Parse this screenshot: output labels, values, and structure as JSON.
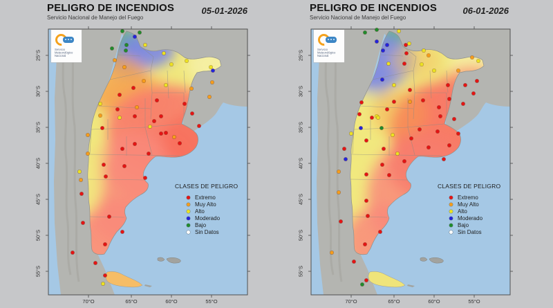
{
  "page_background": "#c6c7c9",
  "legend_title": "CLASES DE PELIGRO",
  "danger_classes": [
    {
      "key": "E",
      "label": "Extremo",
      "color": "#e41414"
    },
    {
      "key": "M",
      "label": "Muy Alto",
      "color": "#f59d1c"
    },
    {
      "key": "A",
      "label": "Alto",
      "color": "#ece222"
    },
    {
      "key": "MOD",
      "label": "Moderado",
      "color": "#2323dc"
    },
    {
      "key": "B",
      "label": "Bajo",
      "color": "#1f8b2c"
    },
    {
      "key": "S",
      "label": "Sin Datos",
      "color": "#ffffff"
    }
  ],
  "axes": {
    "lon_labels": [
      "70°O",
      "65°O",
      "60°O",
      "55°O"
    ],
    "lat_labels": [
      "25°S",
      "30°S",
      "35°S",
      "40°S",
      "45°S",
      "50°S",
      "55°S"
    ]
  },
  "logo_lines": [
    "Servicio",
    "Meteorológico",
    "Nacional"
  ],
  "map_colors": {
    "ocean": "#a5c8e5",
    "land": "#b4b5b1",
    "field_yellow_base": "#f0e77c",
    "field_red": "#f8705f",
    "field_orange": "#f6a24e",
    "field_blue": "#7c87e6",
    "field_teal": "#66ad8c"
  },
  "panels": [
    {
      "title": "PELIGRO DE INCENDIOS",
      "subtitle": "Servicio Nacional de Manejo del Fuego",
      "date": "05-01-2026",
      "tdf_color": "#f6bd66",
      "field_blobs": [
        [
          100,
          22,
          42,
          30,
          "#66ad8c",
          0.95
        ],
        [
          143,
          30,
          40,
          26,
          "#7c87e6",
          0.9
        ],
        [
          116,
          50,
          28,
          20,
          "#7c87e6",
          0.65
        ],
        [
          245,
          52,
          45,
          32,
          "#f6f0a8",
          0.85
        ],
        [
          100,
          80,
          48,
          42,
          "#f6a24e",
          0.75
        ],
        [
          130,
          102,
          52,
          36,
          "#f6a24e",
          0.55
        ],
        [
          172,
          148,
          88,
          66,
          "#f87c6b",
          0.9
        ],
        [
          150,
          195,
          65,
          55,
          "#f87c6b",
          0.8
        ],
        [
          122,
          232,
          72,
          82,
          "#f98b7b",
          0.85
        ],
        [
          100,
          302,
          62,
          58,
          "#f98b7b",
          0.9
        ],
        [
          212,
          162,
          48,
          42,
          "#f76a58",
          0.65
        ],
        [
          50,
          222,
          28,
          48,
          "#f1e87e",
          0.95
        ],
        [
          62,
          175,
          22,
          30,
          "#f1e87e",
          0.7
        ]
      ],
      "stations": [
        [
          "B",
          107,
          3
        ],
        [
          "B",
          132,
          5
        ],
        [
          "B",
          113,
          23
        ],
        [
          "B",
          112,
          31
        ],
        [
          "B",
          92,
          28
        ],
        [
          "MOD",
          125,
          11
        ],
        [
          "MOD",
          238,
          60
        ],
        [
          "A",
          140,
          23
        ],
        [
          "A",
          167,
          35
        ],
        [
          "A",
          200,
          46
        ],
        [
          "A",
          235,
          55
        ],
        [
          "A",
          178,
          51
        ],
        [
          "A",
          170,
          81
        ],
        [
          "A",
          103,
          128
        ],
        [
          "A",
          147,
          141
        ],
        [
          "A",
          75,
          108
        ],
        [
          "A",
          45,
          206
        ],
        [
          "A",
          79,
          368
        ],
        [
          "M",
          110,
          55
        ],
        [
          "M",
          138,
          75
        ],
        [
          "M",
          237,
          77
        ],
        [
          "M",
          207,
          86
        ],
        [
          "M",
          233,
          98
        ],
        [
          "M",
          128,
          113
        ],
        [
          "M",
          75,
          125
        ],
        [
          "M",
          57,
          153
        ],
        [
          "M",
          57,
          180
        ],
        [
          "M",
          47,
          218
        ],
        [
          "M",
          182,
          156
        ],
        [
          "M",
          96,
          45
        ],
        [
          "E",
          123,
          85
        ],
        [
          "E",
          103,
          95
        ],
        [
          "E",
          157,
          103
        ],
        [
          "E",
          197,
          108
        ],
        [
          "E",
          100,
          116
        ],
        [
          "E",
          125,
          126
        ],
        [
          "E",
          163,
          126
        ],
        [
          "E",
          78,
          143
        ],
        [
          "E",
          153,
          133
        ],
        [
          "E",
          163,
          151
        ],
        [
          "E",
          125,
          166
        ],
        [
          "E",
          107,
          173
        ],
        [
          "E",
          145,
          180
        ],
        [
          "E",
          80,
          196
        ],
        [
          "E",
          110,
          198
        ],
        [
          "E",
          83,
          213
        ],
        [
          "E",
          140,
          215
        ],
        [
          "E",
          48,
          238
        ],
        [
          "E",
          50,
          280
        ],
        [
          "E",
          88,
          271
        ],
        [
          "E",
          107,
          293
        ],
        [
          "E",
          82,
          311
        ],
        [
          "E",
          35,
          323
        ],
        [
          "E",
          68,
          338
        ],
        [
          "E",
          82,
          356
        ],
        [
          "E",
          208,
          122
        ],
        [
          "E",
          190,
          165
        ],
        [
          "E",
          170,
          150
        ],
        [
          "E",
          218,
          140
        ]
      ]
    },
    {
      "title": "PELIGRO DE INCENDIOS",
      "subtitle": "Servicio Nacional de Manejo del Fuego",
      "date": "06-01-2026",
      "tdf_color": "#efe47a",
      "field_blobs": [
        [
          122,
          6,
          26,
          18,
          "#66ad8c",
          0.95
        ],
        [
          95,
          46,
          55,
          38,
          "#7c87e6",
          0.9
        ],
        [
          76,
          82,
          36,
          28,
          "#7c87e6",
          0.6
        ],
        [
          152,
          46,
          36,
          26,
          "#f4c468",
          0.55
        ],
        [
          242,
          50,
          42,
          30,
          "#f6f0a8",
          0.8
        ],
        [
          68,
          168,
          46,
          78,
          "#f1e87e",
          0.95
        ],
        [
          58,
          248,
          40,
          62,
          "#f1e87e",
          0.92
        ],
        [
          90,
          120,
          30,
          30,
          "#f1e87e",
          0.6
        ],
        [
          196,
          148,
          82,
          72,
          "#f8705f",
          0.9
        ],
        [
          232,
          100,
          52,
          46,
          "#f87c6b",
          0.7
        ],
        [
          152,
          242,
          72,
          82,
          "#f98b7b",
          0.85
        ],
        [
          104,
          306,
          56,
          52,
          "#f98b7b",
          0.85
        ],
        [
          170,
          195,
          60,
          50,
          "#f87c6b",
          0.8
        ],
        [
          128,
          122,
          40,
          34,
          "#f6a24e",
          0.45
        ]
      ],
      "stations": [
        [
          "B",
          95,
          1
        ],
        [
          "B",
          78,
          5
        ],
        [
          "B",
          102,
          143
        ],
        [
          "B",
          74,
          369
        ],
        [
          "MOD",
          110,
          23
        ],
        [
          "MOD",
          104,
          31
        ],
        [
          "MOD",
          95,
          18
        ],
        [
          "MOD",
          103,
          73
        ],
        [
          "MOD",
          72,
          143
        ],
        [
          "MOD",
          50,
          188
        ],
        [
          "A",
          127,
          3
        ],
        [
          "A",
          142,
          21
        ],
        [
          "A",
          163,
          31
        ],
        [
          "A",
          160,
          51
        ],
        [
          "A",
          178,
          60
        ],
        [
          "A",
          242,
          46
        ],
        [
          "A",
          120,
          81
        ],
        [
          "A",
          95,
          126
        ],
        [
          "A",
          97,
          128
        ],
        [
          "A",
          58,
          151
        ],
        [
          "A",
          118,
          153
        ],
        [
          "A",
          125,
          180
        ],
        [
          "A",
          112,
          50
        ],
        [
          "M",
          213,
          60
        ],
        [
          "M",
          233,
          41
        ],
        [
          "M",
          170,
          38
        ],
        [
          "M",
          143,
          105
        ],
        [
          "M",
          40,
          206
        ],
        [
          "M",
          40,
          236
        ],
        [
          "M",
          30,
          323
        ],
        [
          "E",
          137,
          23
        ],
        [
          "E",
          138,
          35
        ],
        [
          "E",
          135,
          50
        ],
        [
          "E",
          73,
          106
        ],
        [
          "E",
          110,
          116
        ],
        [
          "E",
          120,
          105
        ],
        [
          "E",
          143,
          88
        ],
        [
          "E",
          162,
          103
        ],
        [
          "E",
          185,
          113
        ],
        [
          "E",
          198,
          81
        ],
        [
          "E",
          223,
          81
        ],
        [
          "E",
          240,
          75
        ],
        [
          "E",
          235,
          93
        ],
        [
          "E",
          200,
          101
        ],
        [
          "E",
          220,
          108
        ],
        [
          "E",
          70,
          123
        ],
        [
          "E",
          88,
          128
        ],
        [
          "E",
          48,
          173
        ],
        [
          "E",
          80,
          161
        ],
        [
          "E",
          105,
          173
        ],
        [
          "E",
          103,
          196
        ],
        [
          "E",
          80,
          210
        ],
        [
          "E",
          135,
          191
        ],
        [
          "E",
          113,
          211
        ],
        [
          "E",
          145,
          158
        ],
        [
          "E",
          157,
          145
        ],
        [
          "E",
          187,
          126
        ],
        [
          "E",
          207,
          130
        ],
        [
          "E",
          183,
          148
        ],
        [
          "E",
          200,
          168
        ],
        [
          "E",
          192,
          188
        ],
        [
          "E",
          170,
          171
        ],
        [
          "E",
          213,
          151
        ],
        [
          "E",
          80,
          248
        ],
        [
          "E",
          43,
          278
        ],
        [
          "E",
          82,
          270
        ],
        [
          "E",
          100,
          293
        ],
        [
          "E",
          78,
          311
        ],
        [
          "E",
          62,
          336
        ],
        [
          "E",
          80,
          363
        ]
      ]
    }
  ]
}
